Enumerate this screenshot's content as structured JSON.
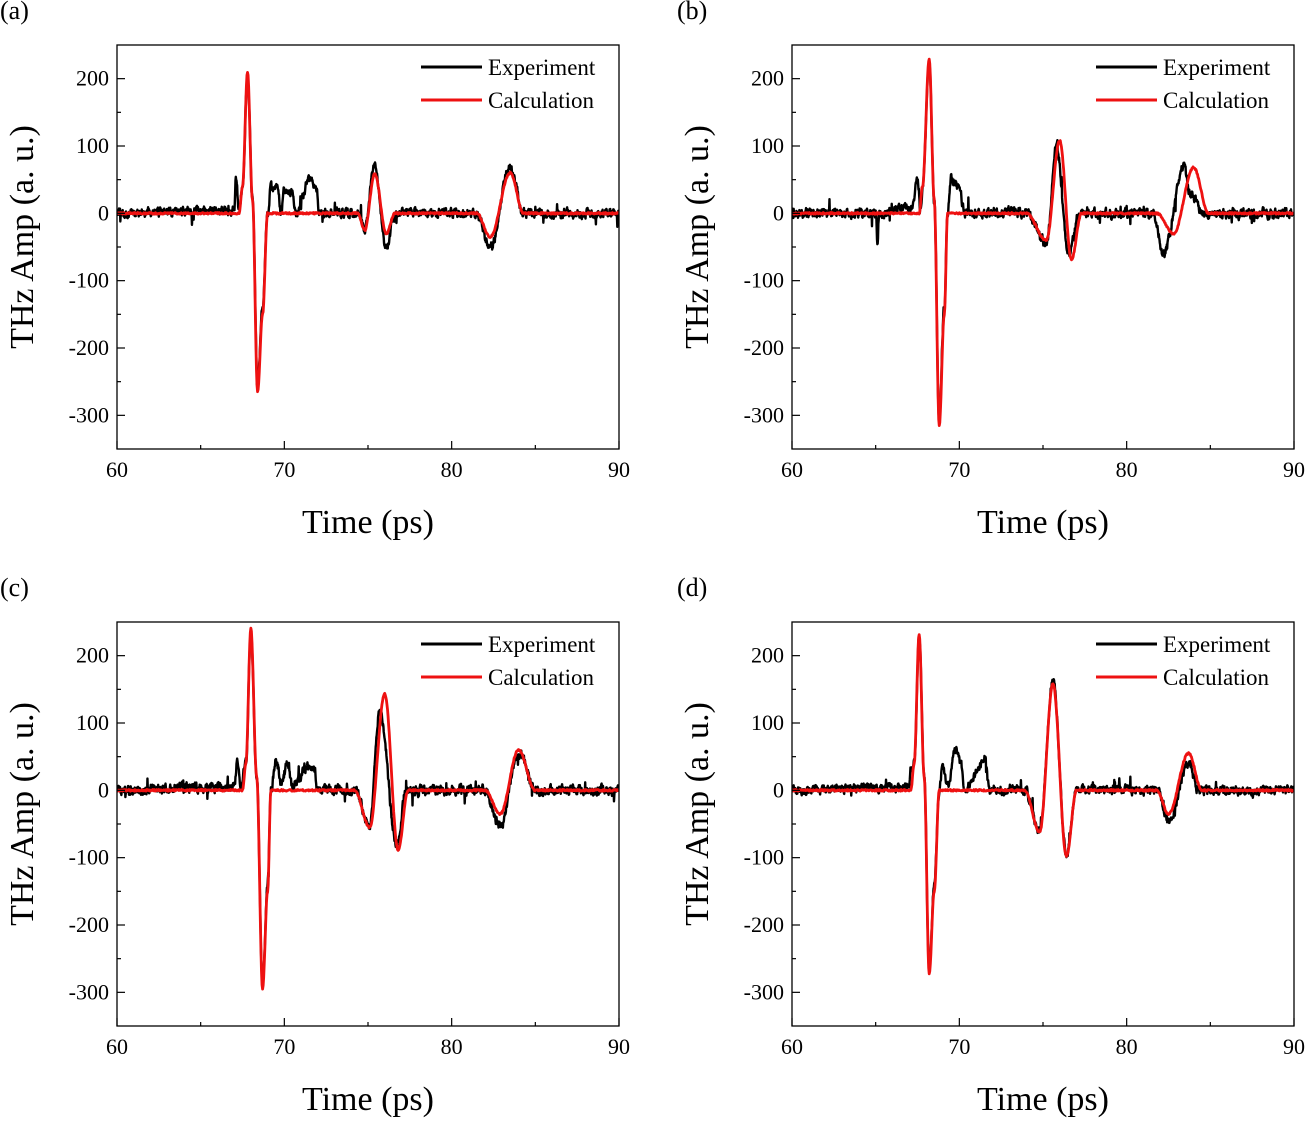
{
  "figure": {
    "legend": {
      "experiment": "Experiment",
      "calculation": "Calculation"
    },
    "colors": {
      "experiment": "#000000",
      "calculation": "#ee1111",
      "axis": "#000000"
    }
  },
  "chart_data": [
    {
      "panel": "(a)",
      "type": "line",
      "title": "",
      "xlabel": "Time (ps)",
      "ylabel": "THz Amp (a. u.)",
      "xlim": [
        60,
        90
      ],
      "ylim": [
        -350,
        250
      ],
      "xticks": [
        60,
        70,
        80,
        90
      ],
      "xtick_labels": [
        "60",
        "70",
        "80",
        "90"
      ],
      "yticks": [
        200,
        100,
        0,
        -100,
        -200,
        -300
      ],
      "ytick_labels": [
        "200",
        "100",
        "0",
        "-100",
        "-200",
        "-300"
      ],
      "grid": false,
      "legend_position": "top-right",
      "series": [
        {
          "name": "Calculation",
          "key_points": [
            [
              60,
              0
            ],
            [
              67.3,
              0
            ],
            [
              67.5,
              40
            ],
            [
              67.8,
              210
            ],
            [
              68.1,
              20
            ],
            [
              68.4,
              -265
            ],
            [
              68.7,
              -150
            ],
            [
              69.0,
              0
            ],
            [
              74.4,
              0
            ],
            [
              74.8,
              -25
            ],
            [
              75.4,
              58
            ],
            [
              76.1,
              -30
            ],
            [
              76.6,
              0
            ],
            [
              81.5,
              0
            ],
            [
              82.3,
              -35
            ],
            [
              83.5,
              60
            ],
            [
              84.3,
              0
            ],
            [
              90,
              0
            ]
          ]
        },
        {
          "name": "Experiment",
          "key_points": [
            [
              60,
              0
            ],
            [
              67.0,
              5
            ],
            [
              67.1,
              50
            ],
            [
              67.3,
              5
            ],
            [
              67.5,
              40
            ],
            [
              67.8,
              205
            ],
            [
              68.1,
              20
            ],
            [
              68.4,
              -255
            ],
            [
              68.7,
              -140
            ],
            [
              69.0,
              0
            ],
            [
              69.2,
              38
            ],
            [
              69.6,
              38
            ],
            [
              69.8,
              0
            ],
            [
              70.0,
              35
            ],
            [
              70.5,
              30
            ],
            [
              70.7,
              0
            ],
            [
              71.5,
              50
            ],
            [
              71.9,
              40
            ],
            [
              72.1,
              0
            ],
            [
              74.4,
              0
            ],
            [
              74.8,
              -20
            ],
            [
              75.4,
              73
            ],
            [
              76.1,
              -52
            ],
            [
              76.6,
              0
            ],
            [
              81.5,
              0
            ],
            [
              82.3,
              -50
            ],
            [
              83.5,
              68
            ],
            [
              84.3,
              0
            ],
            [
              90,
              0
            ]
          ],
          "noise_amplitude": 12
        }
      ]
    },
    {
      "panel": "(b)",
      "type": "line",
      "title": "",
      "xlabel": "Time (ps)",
      "ylabel": "THz Amp (a. u.)",
      "xlim": [
        60,
        90
      ],
      "ylim": [
        -350,
        250
      ],
      "xticks": [
        60,
        70,
        80,
        90
      ],
      "xtick_labels": [
        "60",
        "70",
        "80",
        "90"
      ],
      "yticks": [
        200,
        100,
        0,
        -100,
        -200,
        -300
      ],
      "ytick_labels": [
        "200",
        "100",
        "0",
        "-100",
        "-200",
        "-300"
      ],
      "grid": false,
      "legend_position": "top-right",
      "series": [
        {
          "name": "Calculation",
          "key_points": [
            [
              60,
              0
            ],
            [
              67.6,
              0
            ],
            [
              67.8,
              40
            ],
            [
              68.2,
              230
            ],
            [
              68.5,
              20
            ],
            [
              68.8,
              -315
            ],
            [
              69.1,
              -150
            ],
            [
              69.3,
              0
            ],
            [
              74.0,
              0
            ],
            [
              75.2,
              -40
            ],
            [
              76.0,
              108
            ],
            [
              76.7,
              -68
            ],
            [
              77.3,
              0
            ],
            [
              81.8,
              0
            ],
            [
              82.8,
              -30
            ],
            [
              84.0,
              68
            ],
            [
              84.9,
              0
            ],
            [
              90,
              0
            ]
          ]
        },
        {
          "name": "Experiment",
          "key_points": [
            [
              60,
              0
            ],
            [
              65.0,
              0
            ],
            [
              65.1,
              -40
            ],
            [
              65.2,
              0
            ],
            [
              67.2,
              10
            ],
            [
              67.5,
              52
            ],
            [
              67.7,
              5
            ],
            [
              67.8,
              40
            ],
            [
              68.2,
              225
            ],
            [
              68.5,
              20
            ],
            [
              68.8,
              -305
            ],
            [
              69.1,
              -140
            ],
            [
              69.3,
              0
            ],
            [
              69.5,
              52
            ],
            [
              70.0,
              40
            ],
            [
              70.3,
              0
            ],
            [
              74.0,
              0
            ],
            [
              75.2,
              -45
            ],
            [
              75.8,
              100
            ],
            [
              76.5,
              -60
            ],
            [
              77.2,
              0
            ],
            [
              81.6,
              0
            ],
            [
              82.2,
              -60
            ],
            [
              83.4,
              70
            ],
            [
              83.8,
              30
            ],
            [
              84.6,
              0
            ],
            [
              90,
              0
            ]
          ],
          "noise_amplitude": 13
        }
      ]
    },
    {
      "panel": "(c)",
      "type": "line",
      "title": "",
      "xlabel": "Time (ps)",
      "ylabel": "THz Amp (a. u.)",
      "xlim": [
        60,
        90
      ],
      "ylim": [
        -350,
        250
      ],
      "xticks": [
        60,
        70,
        80,
        90
      ],
      "xtick_labels": [
        "60",
        "70",
        "80",
        "90"
      ],
      "yticks": [
        200,
        100,
        0,
        -100,
        -200,
        -300
      ],
      "ytick_labels": [
        "200",
        "100",
        "0",
        "-100",
        "-200",
        "-300"
      ],
      "grid": false,
      "legend_position": "top-right",
      "series": [
        {
          "name": "Calculation",
          "key_points": [
            [
              60,
              0
            ],
            [
              67.5,
              0
            ],
            [
              67.7,
              40
            ],
            [
              68.0,
              240
            ],
            [
              68.35,
              20
            ],
            [
              68.7,
              -295
            ],
            [
              69.0,
              -150
            ],
            [
              69.2,
              0
            ],
            [
              74.2,
              0
            ],
            [
              75.1,
              -55
            ],
            [
              76.0,
              143
            ],
            [
              76.8,
              -88
            ],
            [
              77.4,
              0
            ],
            [
              82.0,
              0
            ],
            [
              82.9,
              -35
            ],
            [
              84.0,
              60
            ],
            [
              85.0,
              0
            ],
            [
              90,
              0
            ]
          ]
        },
        {
          "name": "Experiment",
          "key_points": [
            [
              60,
              0
            ],
            [
              67.0,
              5
            ],
            [
              67.2,
              45
            ],
            [
              67.4,
              5
            ],
            [
              67.7,
              40
            ],
            [
              68.0,
              235
            ],
            [
              68.35,
              20
            ],
            [
              68.7,
              -285
            ],
            [
              69.0,
              -140
            ],
            [
              69.2,
              0
            ],
            [
              69.5,
              45
            ],
            [
              69.8,
              10
            ],
            [
              70.2,
              40
            ],
            [
              70.5,
              5
            ],
            [
              71.3,
              35
            ],
            [
              71.8,
              30
            ],
            [
              72.0,
              0
            ],
            [
              74.2,
              0
            ],
            [
              75.1,
              -50
            ],
            [
              75.7,
              120
            ],
            [
              76.7,
              -80
            ],
            [
              77.3,
              0
            ],
            [
              82.0,
              0
            ],
            [
              82.9,
              -55
            ],
            [
              84.0,
              55
            ],
            [
              85.0,
              0
            ],
            [
              90,
              0
            ]
          ],
          "noise_amplitude": 13
        }
      ]
    },
    {
      "panel": "(d)",
      "type": "line",
      "title": "",
      "xlabel": "Time (ps)",
      "ylabel": "THz Amp (a. u.)",
      "xlim": [
        60,
        90
      ],
      "ylim": [
        -350,
        250
      ],
      "xticks": [
        60,
        70,
        80,
        90
      ],
      "xtick_labels": [
        "60",
        "70",
        "80",
        "90"
      ],
      "yticks": [
        200,
        100,
        0,
        -100,
        -200,
        -300
      ],
      "ytick_labels": [
        "200",
        "100",
        "0",
        "-100",
        "-200",
        "-300"
      ],
      "grid": false,
      "legend_position": "top-right",
      "series": [
        {
          "name": "Calculation",
          "key_points": [
            [
              60,
              0
            ],
            [
              67.1,
              0
            ],
            [
              67.3,
              40
            ],
            [
              67.6,
              232
            ],
            [
              67.9,
              20
            ],
            [
              68.2,
              -272
            ],
            [
              68.5,
              -150
            ],
            [
              68.8,
              0
            ],
            [
              73.9,
              0
            ],
            [
              74.8,
              -62
            ],
            [
              75.6,
              158
            ],
            [
              76.4,
              -98
            ],
            [
              77.0,
              0
            ],
            [
              81.8,
              0
            ],
            [
              82.5,
              -35
            ],
            [
              83.7,
              55
            ],
            [
              84.5,
              0
            ],
            [
              90,
              0
            ]
          ]
        },
        {
          "name": "Experiment",
          "key_points": [
            [
              60,
              0
            ],
            [
              67.0,
              5
            ],
            [
              67.1,
              30
            ],
            [
              67.3,
              40
            ],
            [
              67.6,
              228
            ],
            [
              67.9,
              20
            ],
            [
              68.2,
              -265
            ],
            [
              68.5,
              -140
            ],
            [
              68.8,
              0
            ],
            [
              69.0,
              35
            ],
            [
              69.3,
              5
            ],
            [
              69.8,
              60
            ],
            [
              70.1,
              40
            ],
            [
              70.3,
              0
            ],
            [
              71.0,
              25
            ],
            [
              71.5,
              50
            ],
            [
              71.8,
              0
            ],
            [
              73.9,
              0
            ],
            [
              74.8,
              -62
            ],
            [
              75.6,
              162
            ],
            [
              76.4,
              -95
            ],
            [
              77.0,
              0
            ],
            [
              81.8,
              0
            ],
            [
              82.5,
              -45
            ],
            [
              83.7,
              40
            ],
            [
              84.3,
              0
            ],
            [
              90,
              0
            ]
          ],
          "noise_amplitude": 12
        }
      ]
    }
  ]
}
